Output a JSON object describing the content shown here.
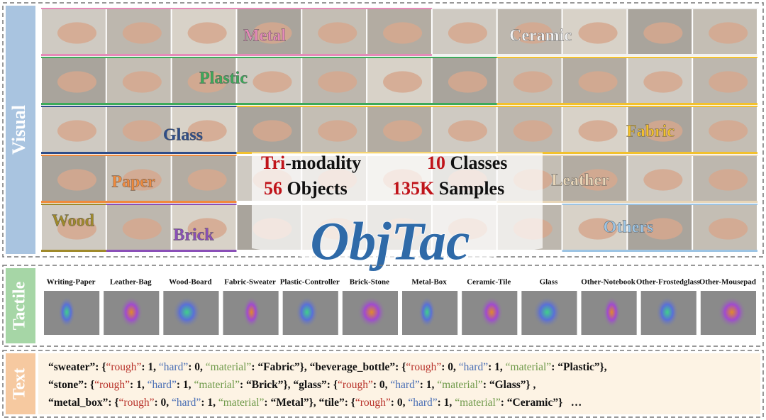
{
  "visual": {
    "label": "Visual",
    "classes": [
      {
        "label": "Metal",
        "color": "#e58ab8"
      },
      {
        "label": "Ceramic",
        "color": "#f2f2f2"
      },
      {
        "label": "Plastic",
        "color": "#3daa5a"
      },
      {
        "label": "Glass",
        "color": "#2e4d8a"
      },
      {
        "label": "Fabric",
        "color": "#f2c12e"
      },
      {
        "label": "Paper",
        "color": "#f08a3c"
      },
      {
        "label": "Leather",
        "color": "#e8d6b8"
      },
      {
        "label": "Wood",
        "color": "#a08a2a"
      },
      {
        "label": "Brick",
        "color": "#8a4fb8"
      },
      {
        "label": "Others",
        "color": "#9cc4e4"
      }
    ],
    "stats": [
      {
        "highlight": "Tri",
        "rest": "-modality"
      },
      {
        "highlight": "10",
        "rest": " Classes"
      },
      {
        "highlight": "56",
        "rest": " Objects"
      },
      {
        "highlight": "135K",
        "rest": " Samples"
      }
    ],
    "title": "ObjTac"
  },
  "tactile": {
    "label": "Tactile",
    "samples": [
      "Writing-Paper",
      "Leather-Bag",
      "Wood-Board",
      "Fabric-Sweater",
      "Plastic-Controller",
      "Brick-Stone",
      "Metal-Box",
      "Ceramic-Tile",
      "Glass",
      "Other-Notebook",
      "Other-Frostedglass",
      "Other-Mousepad"
    ]
  },
  "text": {
    "label": "Text",
    "lines": [
      [
        {
          "text": "“sweater”",
          "style": "key"
        },
        {
          "text": ": {",
          "style": "plain"
        },
        {
          "text": "“rough”",
          "style": "rough"
        },
        {
          "text": ": 1, ",
          "style": "plain"
        },
        {
          "text": "“hard”",
          "style": "hard"
        },
        {
          "text": ": 0, ",
          "style": "plain"
        },
        {
          "text": "“material”",
          "style": "material"
        },
        {
          "text": ": “Fabric”}, ",
          "style": "plain"
        },
        {
          "text": "“beverage_bottle”",
          "style": "key"
        },
        {
          "text": ": {",
          "style": "plain"
        },
        {
          "text": "“rough”",
          "style": "rough"
        },
        {
          "text": ": 0, ",
          "style": "plain"
        },
        {
          "text": "“hard”",
          "style": "hard"
        },
        {
          "text": ": 1, ",
          "style": "plain"
        },
        {
          "text": "“material”",
          "style": "material"
        },
        {
          "text": ": “Plastic”},",
          "style": "plain"
        }
      ],
      [
        {
          "text": "“stone”",
          "style": "key"
        },
        {
          "text": ": {",
          "style": "plain"
        },
        {
          "text": "“rough”",
          "style": "rough"
        },
        {
          "text": ": 1, ",
          "style": "plain"
        },
        {
          "text": "“hard”",
          "style": "hard"
        },
        {
          "text": ": 1, ",
          "style": "plain"
        },
        {
          "text": "“material”",
          "style": "material"
        },
        {
          "text": ": “Brick”}, ",
          "style": "plain"
        },
        {
          "text": "“glass”",
          "style": "key"
        },
        {
          "text": ": {",
          "style": "plain"
        },
        {
          "text": "“rough”",
          "style": "rough"
        },
        {
          "text": ": 0, ",
          "style": "plain"
        },
        {
          "text": "“hard”",
          "style": "hard"
        },
        {
          "text": ": 1, ",
          "style": "plain"
        },
        {
          "text": "“material”",
          "style": "material"
        },
        {
          "text": ": “Glass”} ,",
          "style": "plain"
        }
      ],
      [
        {
          "text": "“metal_box”",
          "style": "key"
        },
        {
          "text": ": {",
          "style": "plain"
        },
        {
          "text": "“rough”",
          "style": "rough"
        },
        {
          "text": ": 0, ",
          "style": "plain"
        },
        {
          "text": "“hard”",
          "style": "hard"
        },
        {
          "text": ": 1, ",
          "style": "plain"
        },
        {
          "text": "“material”",
          "style": "material"
        },
        {
          "text": ": “Metal”}, ",
          "style": "plain"
        },
        {
          "text": "“tile”",
          "style": "key"
        },
        {
          "text": ": {",
          "style": "plain"
        },
        {
          "text": "“rough”",
          "style": "rough"
        },
        {
          "text": ": 0, ",
          "style": "plain"
        },
        {
          "text": "“hard”",
          "style": "hard"
        },
        {
          "text": ": 1, ",
          "style": "plain"
        },
        {
          "text": "“material”",
          "style": "material"
        },
        {
          "text": ": “Ceramic”}   …",
          "style": "plain"
        }
      ]
    ]
  }
}
